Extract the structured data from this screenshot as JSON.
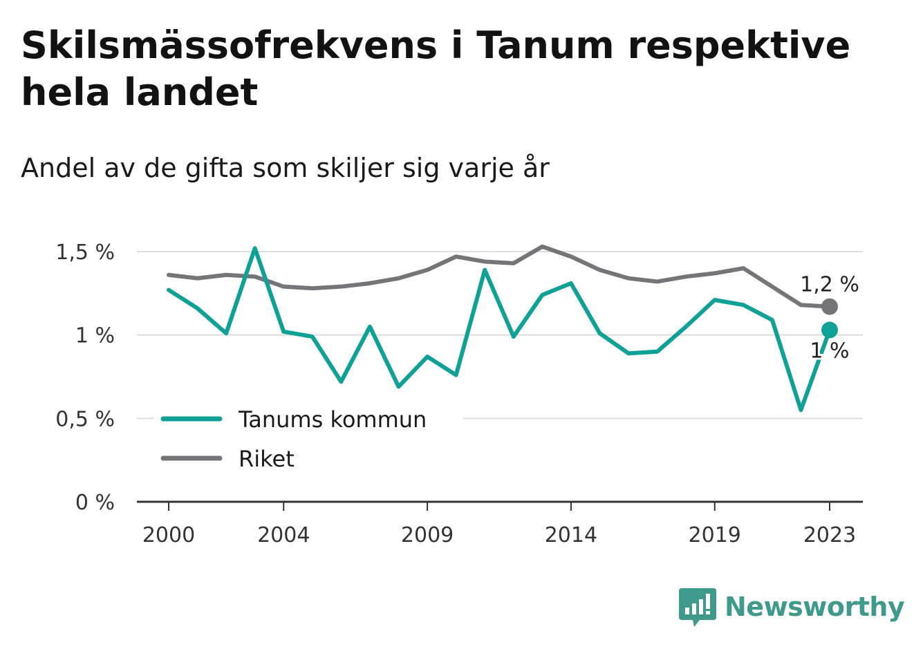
{
  "header": {
    "title": "Skilsmässofrekvens i Tanum respektive hela landet",
    "subtitle": "Andel av de gifta som skiljer sig varje år"
  },
  "brand": {
    "name": "Newsworthy",
    "icon": "newsworthy-logo-icon",
    "color": "#3f9a8c"
  },
  "chart_data": {
    "type": "line",
    "title": "Skilsmässofrekvens i Tanum respektive hela landet",
    "subtitle": "Andel av de gifta som skiljer sig varje år",
    "xlabel": "",
    "ylabel": "",
    "x": [
      2000,
      2001,
      2002,
      2003,
      2004,
      2005,
      2006,
      2007,
      2008,
      2009,
      2010,
      2011,
      2012,
      2013,
      2014,
      2015,
      2016,
      2017,
      2018,
      2019,
      2020,
      2021,
      2022,
      2023
    ],
    "x_ticks": [
      2000,
      2004,
      2009,
      2014,
      2019,
      2023
    ],
    "x_tick_labels": [
      "2000",
      "2004",
      "2009",
      "2014",
      "2019",
      "2023"
    ],
    "y_ticks": [
      0,
      0.5,
      1,
      1.5
    ],
    "y_tick_labels": [
      "0 %",
      "0,5 %",
      "1 %",
      "1,5 %"
    ],
    "ylim": [
      0,
      1.5
    ],
    "grid": true,
    "legend_position": "bottom-left",
    "series": [
      {
        "name": "Tanums kommun",
        "color": "#0fa196",
        "values": [
          1.27,
          1.16,
          1.01,
          1.52,
          1.02,
          0.99,
          0.72,
          1.05,
          0.69,
          0.87,
          0.76,
          1.39,
          0.99,
          1.24,
          1.31,
          1.01,
          0.89,
          0.9,
          1.05,
          1.21,
          1.18,
          1.09,
          0.55,
          1.03
        ],
        "end_label": "1 %"
      },
      {
        "name": "Riket",
        "color": "#767479",
        "values": [
          1.36,
          1.34,
          1.36,
          1.35,
          1.29,
          1.28,
          1.29,
          1.31,
          1.34,
          1.39,
          1.47,
          1.44,
          1.43,
          1.53,
          1.47,
          1.39,
          1.34,
          1.32,
          1.35,
          1.37,
          1.4,
          1.29,
          1.18,
          1.17
        ],
        "end_label": "1,2 %"
      }
    ]
  }
}
